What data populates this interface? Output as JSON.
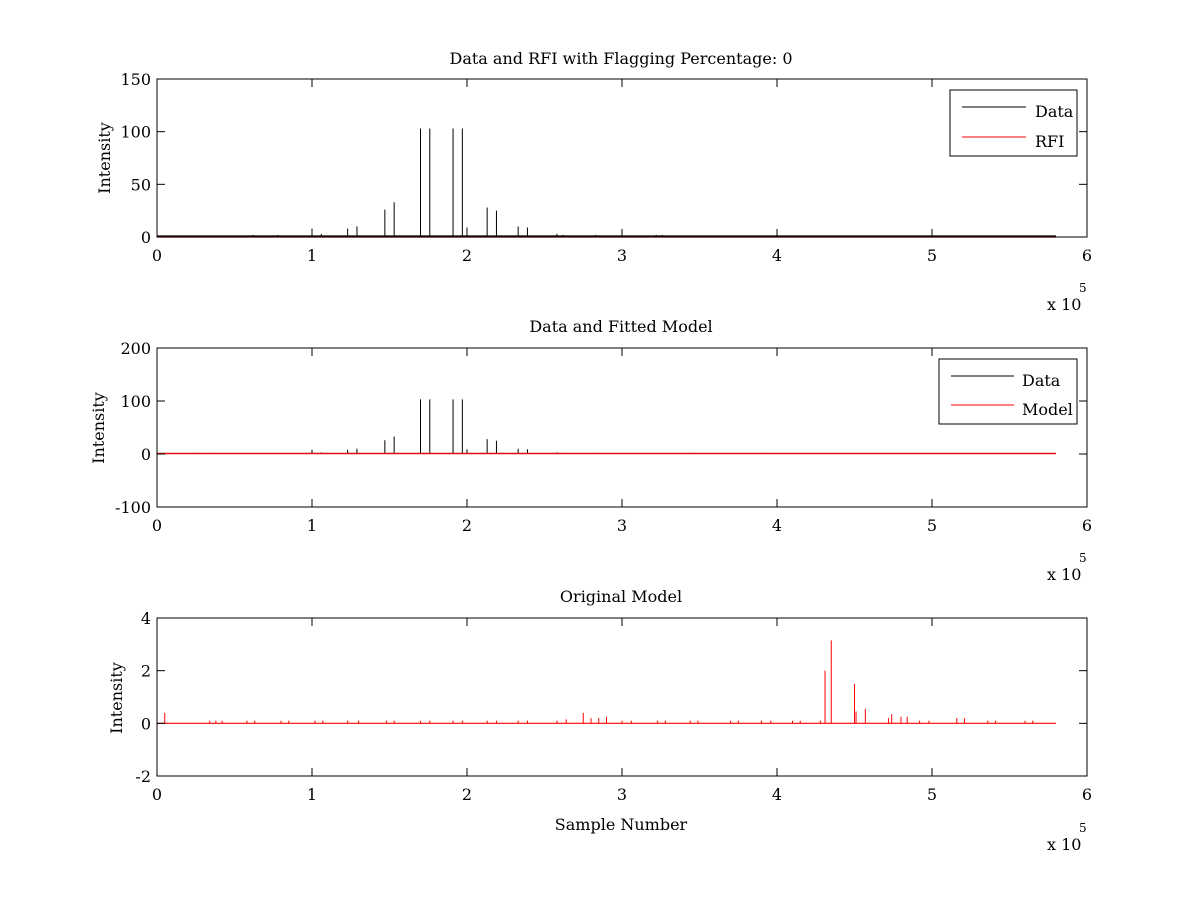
{
  "colors": {
    "data": "#000000",
    "rfi": "#ff0000",
    "model": "#ff0000",
    "axes": "#000000",
    "background": "#ffffff"
  },
  "chart_data": [
    {
      "type": "line",
      "title": "Data and RFI with Flagging Percentage: 0",
      "xlabel": "",
      "ylabel": "Intensity",
      "xlim": [
        0,
        600000
      ],
      "ylim": [
        0,
        150
      ],
      "xticks": [
        0,
        1,
        2,
        3,
        4,
        5,
        6
      ],
      "yticks": [
        0,
        50,
        100,
        150
      ],
      "x_exponent_label": "x 10",
      "x_exponent": "5",
      "grid": false,
      "legend_position": "top-right",
      "series": [
        {
          "name": "Data",
          "color": "black",
          "baseline": 1,
          "x_end": 580000,
          "spikes": [
            [
              100000,
              8
            ],
            [
              106000,
              3
            ],
            [
              123000,
              8
            ],
            [
              129000,
              10
            ],
            [
              147000,
              26
            ],
            [
              153000,
              33
            ],
            [
              170000,
              103
            ],
            [
              176000,
              103
            ],
            [
              191000,
              103
            ],
            [
              197000,
              103
            ],
            [
              200000,
              9
            ],
            [
              213000,
              28
            ],
            [
              219000,
              25
            ],
            [
              233000,
              10
            ],
            [
              239000,
              9
            ],
            [
              258000,
              3
            ],
            [
              262000,
              2
            ],
            [
              283000,
              2
            ],
            [
              300000,
              2
            ],
            [
              322000,
              2
            ],
            [
              326000,
              2
            ],
            [
              400000,
              2
            ],
            [
              500000,
              2
            ],
            [
              78000,
              2
            ],
            [
              62000,
              2
            ]
          ]
        },
        {
          "name": "RFI",
          "color": "red",
          "baseline": 0,
          "x_end": 580000,
          "spikes": []
        }
      ]
    },
    {
      "type": "line",
      "title": "Data and Fitted Model",
      "xlabel": "",
      "ylabel": "Intensity",
      "xlim": [
        0,
        600000
      ],
      "ylim": [
        -100,
        200
      ],
      "xticks": [
        0,
        1,
        2,
        3,
        4,
        5,
        6
      ],
      "yticks": [
        -100,
        0,
        100,
        200
      ],
      "x_exponent_label": "x 10",
      "x_exponent": "5",
      "grid": false,
      "legend_position": "top-right",
      "series": [
        {
          "name": "Data",
          "color": "black",
          "baseline": 1,
          "x_end": 580000,
          "spikes": [
            [
              100000,
              8
            ],
            [
              106000,
              3
            ],
            [
              123000,
              8
            ],
            [
              129000,
              10
            ],
            [
              147000,
              26
            ],
            [
              153000,
              33
            ],
            [
              170000,
              103
            ],
            [
              176000,
              103
            ],
            [
              191000,
              103
            ],
            [
              197000,
              103
            ],
            [
              200000,
              9
            ],
            [
              213000,
              28
            ],
            [
              219000,
              25
            ],
            [
              233000,
              10
            ],
            [
              239000,
              9
            ],
            [
              24000,
              2
            ],
            [
              37000,
              2
            ],
            [
              258000,
              3
            ],
            [
              262000,
              2
            ],
            [
              283000,
              2
            ],
            [
              300000,
              2
            ],
            [
              322000,
              2
            ],
            [
              344000,
              2
            ],
            [
              370000,
              2
            ],
            [
              392000,
              2
            ]
          ]
        },
        {
          "name": "Model",
          "color": "red",
          "baseline": 1,
          "x_end": 580000,
          "spikes": []
        }
      ]
    },
    {
      "type": "line",
      "title": "Original Model",
      "xlabel": "Sample Number",
      "ylabel": "Intensity",
      "xlim": [
        0,
        600000
      ],
      "ylim": [
        -2,
        4
      ],
      "xticks": [
        0,
        1,
        2,
        3,
        4,
        5,
        6
      ],
      "yticks": [
        -2,
        0,
        2,
        4
      ],
      "x_exponent_label": "x 10",
      "x_exponent": "5",
      "grid": false,
      "legend_position": "none",
      "series": [
        {
          "color": "red",
          "baseline": 0,
          "x_end": 580000,
          "spikes": [
            [
              5000,
              0.4
            ],
            [
              34000,
              0.1
            ],
            [
              38000,
              0.1
            ],
            [
              42000,
              0.1
            ],
            [
              58000,
              0.1
            ],
            [
              63000,
              0.1
            ],
            [
              80000,
              0.1
            ],
            [
              85000,
              0.1
            ],
            [
              102000,
              0.1
            ],
            [
              107000,
              0.1
            ],
            [
              123000,
              0.1
            ],
            [
              130000,
              0.1
            ],
            [
              148000,
              0.1
            ],
            [
              153000,
              0.1
            ],
            [
              170000,
              0.1
            ],
            [
              176000,
              0.1
            ],
            [
              191000,
              0.1
            ],
            [
              197000,
              0.1
            ],
            [
              213000,
              0.1
            ],
            [
              219000,
              0.1
            ],
            [
              233000,
              0.1
            ],
            [
              239000,
              0.1
            ],
            [
              258000,
              0.1
            ],
            [
              264000,
              0.15
            ],
            [
              275000,
              0.4
            ],
            [
              280000,
              0.2
            ],
            [
              285000,
              0.2
            ],
            [
              290000,
              0.25
            ],
            [
              300000,
              0.1
            ],
            [
              306000,
              0.1
            ],
            [
              323000,
              0.1
            ],
            [
              328000,
              0.1
            ],
            [
              344000,
              0.1
            ],
            [
              349000,
              0.1
            ],
            [
              370000,
              0.1
            ],
            [
              375000,
              0.1
            ],
            [
              390000,
              0.1
            ],
            [
              396000,
              0.1
            ],
            [
              410000,
              0.1
            ],
            [
              415000,
              0.1
            ],
            [
              428000,
              0.1
            ],
            [
              431000,
              2.0
            ],
            [
              435000,
              3.15
            ],
            [
              450000,
              1.5
            ],
            [
              451000,
              0.45
            ],
            [
              457000,
              0.55
            ],
            [
              472000,
              0.2
            ],
            [
              474000,
              0.35
            ],
            [
              480000,
              0.25
            ],
            [
              484000,
              0.25
            ],
            [
              492000,
              0.1
            ],
            [
              498000,
              0.1
            ],
            [
              516000,
              0.2
            ],
            [
              521000,
              0.2
            ],
            [
              536000,
              0.1
            ],
            [
              541000,
              0.1
            ],
            [
              560000,
              0.1
            ],
            [
              565000,
              0.1
            ]
          ]
        }
      ]
    }
  ]
}
